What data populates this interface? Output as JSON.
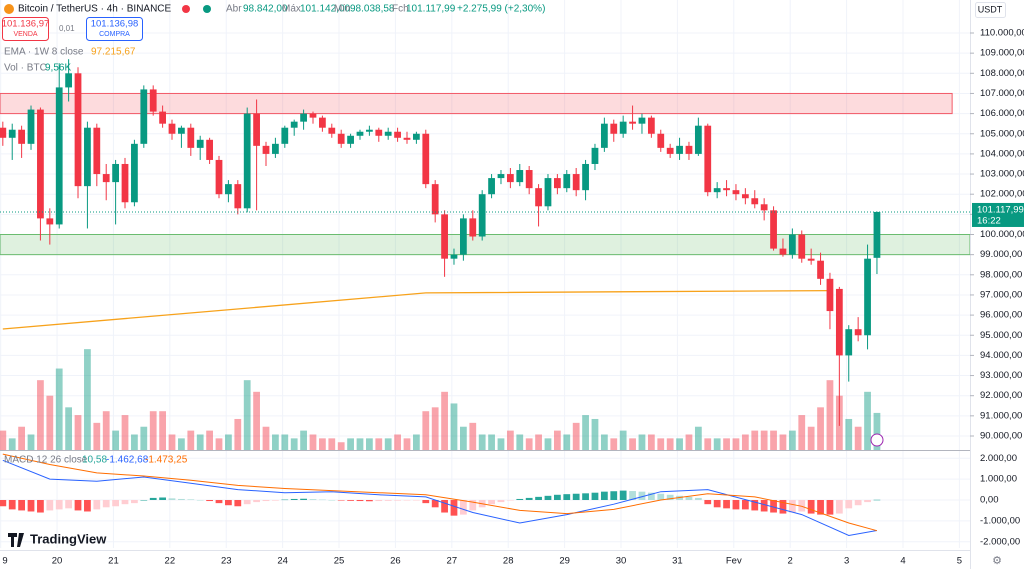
{
  "header": {
    "symbol": "Bitcoin / TetherUS · 4h · BINANCE",
    "open_label": "Abr",
    "open": "98.842,00",
    "high_label": "Máx",
    "high": "101.142,00",
    "low_label": "Mín",
    "low": "98.038,58",
    "close_label": "Fch",
    "close": "101.117,99",
    "change": "+2.275,99 (+2,30%)"
  },
  "trade": {
    "sell": "101.136,97",
    "sell_label": "VENDA",
    "spread": "0,01",
    "buy": "101.136,98",
    "buy_label": "COMPRA"
  },
  "currency": "USDT",
  "brand": "TradingView",
  "chart_data": {
    "type": "candlestick",
    "up_color": "#089981",
    "down_color": "#f23645",
    "xlim": [
      -0.3,
      102.9
    ],
    "xticks": [
      {
        "value": -0.23,
        "label": "9"
      },
      {
        "value": 5.77,
        "label": "20"
      },
      {
        "value": 11.77,
        "label": "21"
      },
      {
        "value": 17.77,
        "label": "22"
      },
      {
        "value": 23.77,
        "label": "23"
      },
      {
        "value": 29.77,
        "label": "24"
      },
      {
        "value": 35.77,
        "label": "25"
      },
      {
        "value": 41.77,
        "label": "26"
      },
      {
        "value": 47.77,
        "label": "27"
      },
      {
        "value": 53.77,
        "label": "28"
      },
      {
        "value": 59.77,
        "label": "29"
      },
      {
        "value": 65.77,
        "label": "30"
      },
      {
        "value": 71.77,
        "label": "31"
      },
      {
        "value": 77.77,
        "label": "Fev"
      },
      {
        "value": 83.77,
        "label": "2"
      },
      {
        "value": 89.77,
        "label": "3"
      },
      {
        "value": 95.77,
        "label": "4"
      },
      {
        "value": 101.77,
        "label": "5"
      }
    ],
    "ylim": [
      89305,
      111638
    ],
    "yticks": [
      {
        "value": 110000,
        "label": "110.000,00"
      },
      {
        "value": 109000,
        "label": "109.000,00"
      },
      {
        "value": 108000,
        "label": "108.000,00"
      },
      {
        "value": 107000,
        "label": "107.000,00"
      },
      {
        "value": 106000,
        "label": "106.000,00"
      },
      {
        "value": 105000,
        "label": "105.000,00"
      },
      {
        "value": 104000,
        "label": "104.000,00"
      },
      {
        "value": 103000,
        "label": "103.000,00"
      },
      {
        "value": 102000,
        "label": "102.000,00"
      },
      {
        "value": 101000,
        "label": "101.000,00"
      },
      {
        "value": 100000,
        "label": "100.000,00"
      },
      {
        "value": 99000,
        "label": "99.000,00"
      },
      {
        "value": 98000,
        "label": "98.000,00"
      },
      {
        "value": 97000,
        "label": "97.000,00"
      },
      {
        "value": 96000,
        "label": "96.000,00"
      },
      {
        "value": 95000,
        "label": "95.000,00"
      },
      {
        "value": 94000,
        "label": "94.000,00"
      },
      {
        "value": 93000,
        "label": "93.000,00"
      },
      {
        "value": 92000,
        "label": "92.000,00"
      },
      {
        "value": 91000,
        "label": "91.000,00"
      },
      {
        "value": 90000,
        "label": "90.000,00"
      }
    ],
    "candles": [
      [
        105300,
        105600,
        104400,
        104800
      ],
      [
        104800,
        105500,
        103700,
        105200
      ],
      [
        105200,
        105400,
        103800,
        104500
      ],
      [
        104500,
        106400,
        104200,
        106200
      ],
      [
        106200,
        106300,
        99700,
        100800
      ],
      [
        100800,
        101300,
        99500,
        100500
      ],
      [
        100500,
        108500,
        100300,
        107300
      ],
      [
        107300,
        108700,
        106600,
        108000
      ],
      [
        108000,
        108300,
        101800,
        102400
      ],
      [
        102400,
        105600,
        100300,
        105300
      ],
      [
        105300,
        105500,
        102400,
        103000
      ],
      [
        103000,
        103500,
        101700,
        102600
      ],
      [
        102600,
        103700,
        100500,
        103500
      ],
      [
        103500,
        103800,
        101300,
        101600
      ],
      [
        101600,
        104700,
        101400,
        104500
      ],
      [
        104500,
        107400,
        104300,
        107200
      ],
      [
        107200,
        107400,
        105900,
        106100
      ],
      [
        106100,
        106400,
        105300,
        105500
      ],
      [
        105500,
        105700,
        104700,
        105000
      ],
      [
        105000,
        105400,
        104300,
        105300
      ],
      [
        105300,
        105500,
        103900,
        104300
      ],
      [
        104300,
        104900,
        103700,
        104700
      ],
      [
        104700,
        104800,
        103500,
        103700
      ],
      [
        103700,
        103900,
        101800,
        102000
      ],
      [
        102000,
        102700,
        101600,
        102500
      ],
      [
        102500,
        102700,
        101000,
        101300
      ],
      [
        101300,
        106300,
        101100,
        106000
      ],
      [
        106000,
        106700,
        101200,
        104400
      ],
      [
        104400,
        104600,
        103400,
        104000
      ],
      [
        104000,
        104800,
        103800,
        104500
      ],
      [
        104500,
        105400,
        104300,
        105300
      ],
      [
        105300,
        105700,
        104900,
        105600
      ],
      [
        105600,
        106200,
        105200,
        106000
      ],
      [
        106000,
        106100,
        105500,
        105800
      ],
      [
        105800,
        105900,
        105100,
        105300
      ],
      [
        105300,
        105500,
        104800,
        105000
      ],
      [
        105000,
        105200,
        104300,
        104500
      ],
      [
        104500,
        105000,
        104300,
        104900
      ],
      [
        104900,
        105200,
        104700,
        105100
      ],
      [
        105100,
        105400,
        104900,
        105200
      ],
      [
        105200,
        105300,
        104600,
        104900
      ],
      [
        104900,
        105300,
        104700,
        105100
      ],
      [
        105100,
        105300,
        104600,
        104800
      ],
      [
        104800,
        105100,
        104500,
        104700
      ],
      [
        104700,
        105100,
        104500,
        105000
      ],
      [
        105000,
        105200,
        102300,
        102500
      ],
      [
        102500,
        102700,
        100600,
        101000
      ],
      [
        101000,
        101200,
        97900,
        98800
      ],
      [
        98800,
        99300,
        98500,
        99000
      ],
      [
        99000,
        101000,
        98700,
        100800
      ],
      [
        100800,
        101200,
        99700,
        99900
      ],
      [
        99900,
        102200,
        99700,
        102000
      ],
      [
        102000,
        103000,
        101800,
        102800
      ],
      [
        102800,
        103200,
        102500,
        103000
      ],
      [
        103000,
        103300,
        102300,
        102600
      ],
      [
        102600,
        103500,
        102400,
        103200
      ],
      [
        103200,
        103400,
        102000,
        102300
      ],
      [
        102300,
        102500,
        100400,
        101400
      ],
      [
        101400,
        103000,
        101200,
        102800
      ],
      [
        102800,
        103000,
        102000,
        102300
      ],
      [
        102300,
        103200,
        102100,
        103000
      ],
      [
        103000,
        103300,
        101900,
        102200
      ],
      [
        102200,
        103700,
        101700,
        103500
      ],
      [
        103500,
        104500,
        103200,
        104300
      ],
      [
        104300,
        105800,
        104100,
        105500
      ],
      [
        105500,
        105700,
        104600,
        105000
      ],
      [
        105000,
        105900,
        104800,
        105600
      ],
      [
        105600,
        106400,
        105200,
        105500
      ],
      [
        105500,
        106000,
        105000,
        105800
      ],
      [
        105800,
        105900,
        104800,
        105000
      ],
      [
        105000,
        105200,
        104100,
        104300
      ],
      [
        104300,
        104500,
        103800,
        104000
      ],
      [
        104000,
        104800,
        103700,
        104400
      ],
      [
        104400,
        104600,
        103700,
        104000
      ],
      [
        104000,
        105800,
        103900,
        105400
      ],
      [
        105400,
        105500,
        101900,
        102100
      ],
      [
        102100,
        102600,
        101800,
        102300
      ],
      [
        102300,
        102700,
        101900,
        102200
      ],
      [
        102200,
        102500,
        101700,
        102000
      ],
      [
        102000,
        102300,
        101500,
        101800
      ],
      [
        101800,
        102200,
        101300,
        101500
      ],
      [
        101500,
        101800,
        100700,
        101200
      ],
      [
        101200,
        101400,
        99200,
        99300
      ],
      [
        99300,
        99800,
        98900,
        99000
      ],
      [
        99000,
        100300,
        98800,
        100000
      ],
      [
        100000,
        100200,
        98600,
        98800
      ],
      [
        98800,
        99300,
        98500,
        98700
      ],
      [
        98700,
        99100,
        97500,
        97800
      ],
      [
        97800,
        98100,
        95300,
        96200
      ],
      [
        97300,
        97400,
        90500,
        94000
      ],
      [
        94000,
        95500,
        92700,
        95300
      ],
      [
        95300,
        95900,
        94700,
        95000
      ],
      [
        95000,
        99500,
        94300,
        98800
      ],
      [
        98842,
        101142,
        98038.58,
        101117.99
      ]
    ],
    "current_price": {
      "value": 101117.99,
      "label": "101.117,99",
      "countdown": "16:22"
    },
    "zones": [
      {
        "low": 106000,
        "high": 107000,
        "x_end": 101,
        "color": "#f23645"
      },
      {
        "low": 99000,
        "high": 100000,
        "x_end": 102.9,
        "color": "#4caf50"
      }
    ],
    "ema": {
      "name": "EMA · 1W 8 close",
      "x": [
        0,
        45,
        88
      ],
      "values": [
        95310,
        97100,
        97215.67
      ],
      "value_label": "97.215,67",
      "color": "#f7a21b"
    },
    "volume": {
      "name": "Vol · BTC",
      "ylim": [
        0,
        116000
      ],
      "value_label": "9,56K",
      "values": [
        5000,
        3000,
        6000,
        4000,
        18000,
        14000,
        21000,
        11000,
        9000,
        26000,
        7000,
        10000,
        5000,
        9000,
        4000,
        6000,
        10000,
        10000,
        4000,
        3000,
        5000,
        4000,
        5000,
        3000,
        4000,
        8000,
        18000,
        15000,
        6000,
        4000,
        4000,
        3000,
        5000,
        4000,
        3000,
        3000,
        2000,
        3000,
        3000,
        3000,
        3000,
        3000,
        4000,
        3000,
        4000,
        10000,
        11000,
        15000,
        12000,
        6000,
        7000,
        4000,
        4000,
        3000,
        5000,
        4000,
        3000,
        4000,
        3000,
        5000,
        4000,
        7000,
        9000,
        8000,
        4000,
        3000,
        5000,
        3000,
        4000,
        4000,
        3000,
        3000,
        3000,
        4000,
        6000,
        3000,
        3000,
        3000,
        3000,
        4000,
        5000,
        5000,
        5000,
        4000,
        5000,
        9000,
        6000,
        11000,
        18000,
        14000,
        8000,
        6000,
        15000,
        9560
      ]
    },
    "macd": {
      "name": "MACD 12 26 close",
      "ylim": [
        -2300,
        2300
      ],
      "yticks": [
        {
          "value": 2000,
          "label": "2.000,00"
        },
        {
          "value": 1000,
          "label": "1.000,00"
        },
        {
          "value": 0,
          "label": "0,00"
        },
        {
          "value": -1000,
          "label": "-1.000,00"
        },
        {
          "value": -2000,
          "label": "-2.000,00"
        }
      ],
      "x": [
        0,
        5,
        10,
        15,
        20,
        25,
        30,
        35,
        40,
        45,
        50,
        55,
        60,
        65,
        70,
        75,
        80,
        85,
        90,
        93
      ],
      "macd": [
        1900,
        1000,
        900,
        1100,
        800,
        500,
        350,
        400,
        250,
        150,
        -600,
        -1100,
        -700,
        -200,
        400,
        500,
        -100,
        -700,
        -1700,
        -1462.68
      ],
      "signal": [
        2200,
        1700,
        1300,
        1150,
        950,
        700,
        550,
        450,
        350,
        250,
        -100,
        -500,
        -650,
        -450,
        0,
        300,
        150,
        -300,
        -1100,
        -1473.25
      ],
      "macd_color": "#2962ff",
      "signal_color": "#ff6d00",
      "histogram": [
        -300,
        -450,
        -500,
        -550,
        -600,
        -500,
        -450,
        -400,
        -500,
        -550,
        -450,
        -350,
        -300,
        -200,
        -150,
        0,
        100,
        120,
        80,
        50,
        30,
        0,
        -50,
        -150,
        -250,
        -300,
        -200,
        -100,
        -50,
        -30,
        20,
        50,
        60,
        40,
        20,
        0,
        -20,
        -40,
        -50,
        -60,
        -50,
        -40,
        -30,
        -20,
        -10,
        -150,
        -350,
        -600,
        -750,
        -700,
        -500,
        -350,
        -200,
        -100,
        -20,
        50,
        100,
        150,
        200,
        250,
        280,
        300,
        320,
        350,
        400,
        420,
        450,
        430,
        400,
        350,
        300,
        250,
        200,
        150,
        100,
        -200,
        -350,
        -400,
        -450,
        -450,
        -500,
        -550,
        -600,
        -650,
        -600,
        -550,
        -650,
        -700,
        -700,
        -650,
        -400,
        -250,
        -100,
        10.58
      ],
      "value_labels": {
        "histogram": "10,58",
        "macd": "-1.462,68",
        "signal": "-1.473,25"
      }
    }
  }
}
